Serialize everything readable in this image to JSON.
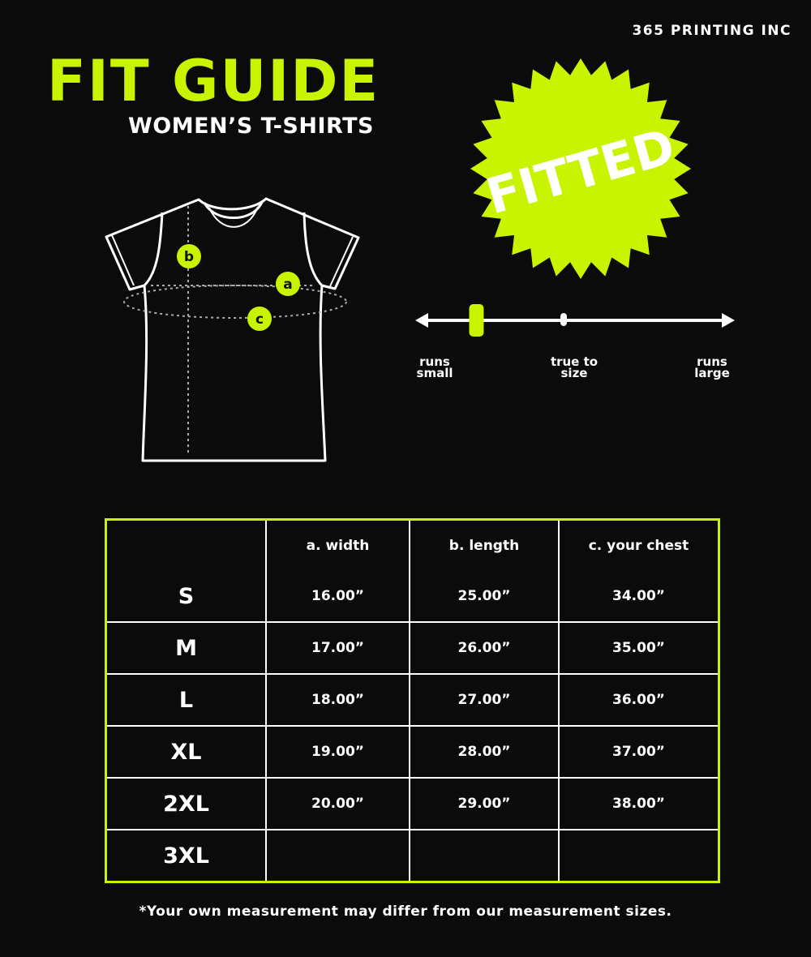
{
  "brand": "365 PRINTING INC",
  "header": {
    "title": "FIT GUIDE",
    "subtitle": "WOMEN’S T-SHIRTS"
  },
  "badge": {
    "label": "FITTED"
  },
  "fit_scale": {
    "labels": [
      "runs small",
      "true to size",
      "runs large"
    ],
    "level": 0.19
  },
  "diagram": {
    "markers": [
      "a",
      "b",
      "c"
    ]
  },
  "table": {
    "headers": [
      "",
      "a. width",
      "b. length",
      "c. your chest"
    ],
    "rows": [
      [
        "S",
        "16.00”",
        "25.00”",
        "34.00”"
      ],
      [
        "M",
        "17.00”",
        "26.00”",
        "35.00”"
      ],
      [
        "L",
        "18.00”",
        "27.00”",
        "36.00”"
      ],
      [
        "XL",
        "19.00”",
        "28.00”",
        "37.00”"
      ],
      [
        "2XL",
        "20.00”",
        "29.00”",
        "38.00”"
      ],
      [
        "3XL",
        "",
        "",
        ""
      ]
    ]
  },
  "footnote": "*Your own measurement may differ from our measurement sizes.",
  "colors": {
    "accent": "#c8f400",
    "background": "#0b0b0b",
    "line": "#ffffff"
  }
}
